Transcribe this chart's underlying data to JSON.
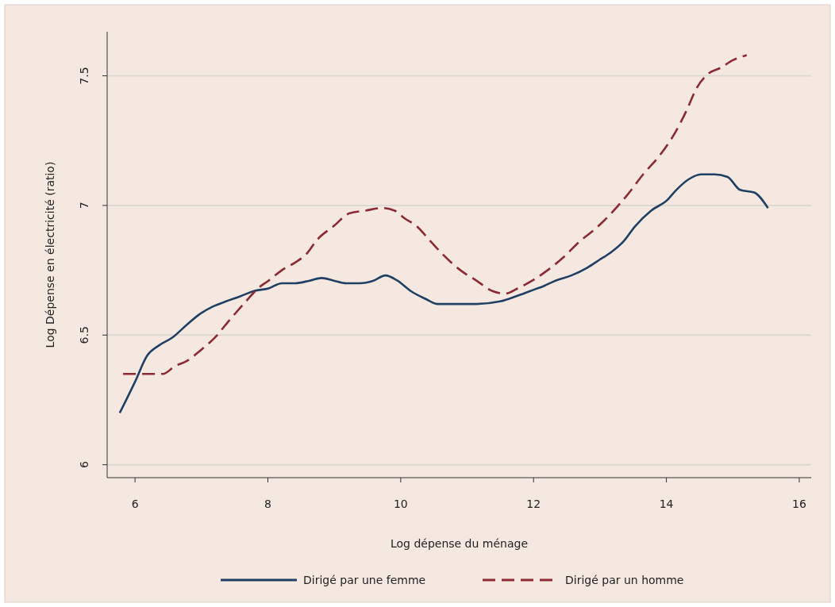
{
  "chart_data": {
    "type": "line",
    "xlabel": "Log dépense du ménage",
    "ylabel": "Log Dépense en électricité (ratio)",
    "xlim": [
      5.58,
      16.18
    ],
    "ylim": [
      5.95,
      7.67
    ],
    "xticks": [
      6,
      8,
      10,
      12,
      14,
      16
    ],
    "yticks": [
      6,
      6.5,
      7,
      7.5
    ],
    "grid": "y",
    "legend": "bottom",
    "series": [
      {
        "name": "Dirigé par une femme",
        "color": "#1f3f63",
        "line_style": "solid",
        "x": [
          5.77,
          6.0,
          6.18,
          6.36,
          6.56,
          6.78,
          6.97,
          7.17,
          7.37,
          7.59,
          7.79,
          8.01,
          8.21,
          8.41,
          8.63,
          8.81,
          8.99,
          9.18,
          9.38,
          9.59,
          9.77,
          9.95,
          10.15,
          10.37,
          10.55,
          10.78,
          11.14,
          11.5,
          11.74,
          11.95,
          12.16,
          12.33,
          12.57,
          12.81,
          12.99,
          13.17,
          13.35,
          13.53,
          13.77,
          14.01,
          14.15,
          14.33,
          14.52,
          14.72,
          14.92,
          15.11,
          15.32,
          15.53
        ],
        "values": [
          6.2,
          6.32,
          6.42,
          6.46,
          6.49,
          6.54,
          6.58,
          6.61,
          6.63,
          6.65,
          6.67,
          6.68,
          6.7,
          6.7,
          6.71,
          6.72,
          6.71,
          6.7,
          6.7,
          6.71,
          6.73,
          6.71,
          6.67,
          6.64,
          6.62,
          6.62,
          6.62,
          6.63,
          6.65,
          6.67,
          6.69,
          6.71,
          6.73,
          6.76,
          6.79,
          6.82,
          6.86,
          6.92,
          6.98,
          7.02,
          7.06,
          7.1,
          7.12,
          7.12,
          7.11,
          7.06,
          7.05,
          6.99
        ]
      },
      {
        "name": "Dirigé par un homme",
        "color": "#8b2a35",
        "line_style": "dashed",
        "x": [
          5.82,
          6.06,
          6.24,
          6.42,
          6.6,
          6.78,
          6.98,
          7.2,
          7.43,
          7.67,
          7.85,
          8.01,
          8.21,
          8.41,
          8.57,
          8.75,
          8.99,
          9.23,
          9.47,
          9.71,
          9.91,
          10.06,
          10.24,
          10.42,
          10.6,
          10.9,
          11.14,
          11.38,
          11.58,
          11.76,
          11.98,
          12.21,
          12.45,
          12.69,
          12.93,
          13.17,
          13.41,
          13.65,
          13.89,
          14.13,
          14.31,
          14.45,
          14.64,
          14.81,
          15.0,
          15.21
        ],
        "values": [
          6.35,
          6.35,
          6.35,
          6.35,
          6.38,
          6.4,
          6.44,
          6.49,
          6.56,
          6.63,
          6.68,
          6.71,
          6.75,
          6.78,
          6.81,
          6.87,
          6.92,
          6.97,
          6.98,
          6.99,
          6.98,
          6.95,
          6.92,
          6.87,
          6.82,
          6.75,
          6.71,
          6.67,
          6.66,
          6.68,
          6.71,
          6.75,
          6.8,
          6.86,
          6.91,
          6.97,
          7.04,
          7.12,
          7.19,
          7.28,
          7.37,
          7.45,
          7.51,
          7.53,
          7.56,
          7.58
        ]
      }
    ]
  }
}
